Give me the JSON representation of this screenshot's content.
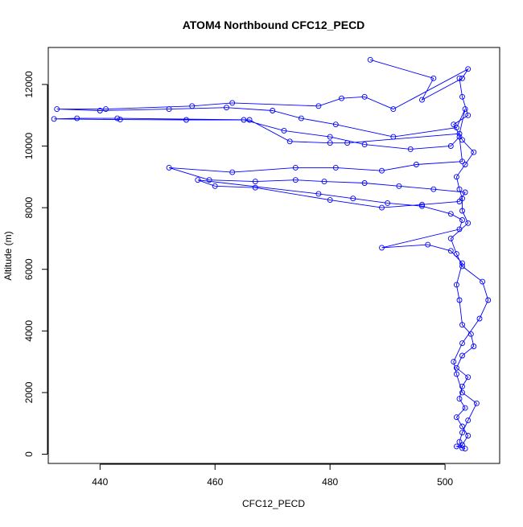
{
  "chart_data": {
    "type": "scatter",
    "title": "ATOM4 Northbound CFC12_PECD",
    "xlabel": "CFC12_PECD",
    "ylabel": "Altitude (m)",
    "xlim": [
      431,
      509.5
    ],
    "ylim": [
      -300,
      13200
    ],
    "xticks": [
      440,
      460,
      480,
      500
    ],
    "yticks": [
      0,
      2000,
      4000,
      6000,
      8000,
      10000,
      12000
    ],
    "xtick_labels": [
      "440",
      "460",
      "480",
      "500"
    ],
    "ytick_labels": [
      "0",
      "2000",
      "4000",
      "6000",
      "8000",
      "10000",
      "12000"
    ],
    "grid": false,
    "legend": "none",
    "colors": {
      "series": "#0000ff",
      "axes": "#000000",
      "background": "#ffffff"
    },
    "series": [
      {
        "marker": "open-circle",
        "connected": true,
        "x": [
          487.0,
          498.0,
          496.0,
          503.0,
          504.0,
          491.0,
          486.0,
          482.0,
          478.0,
          463.0,
          456.0,
          441.0,
          432.5,
          440.0,
          452.0,
          462.0,
          470.0,
          475.0,
          481.0,
          491.0,
          502.0,
          503.5,
          502.5,
          483.0,
          480.0,
          473.0,
          466.0,
          443.0,
          436.0,
          432.0,
          443.5,
          455.0,
          465.0,
          472.0,
          480.0,
          486.0,
          494.0,
          501.0,
          502.5,
          503.0,
          495.0,
          489.0,
          481.0,
          474.0,
          463.0,
          452.0,
          459.0,
          467.0,
          474.0,
          479.0,
          486.0,
          492.0,
          498.0,
          503.5,
          502.5,
          496.0,
          489.0,
          480.0,
          467.0,
          460.0,
          457.0,
          478.0,
          484.0,
          490.0,
          496.0,
          501.0,
          503.0,
          502.5,
          489.0,
          497.0,
          501.0,
          503.0,
          502.0,
          502.5,
          503.0,
          504.5,
          505.0,
          503.0,
          502.0,
          504.0,
          503.0,
          502.5,
          503.5,
          502.0,
          503.0,
          504.0,
          503.0,
          502.0,
          503.5,
          503.0,
          502.5,
          503.0,
          504.0,
          505.5,
          503.0,
          502.0,
          501.5,
          503.0,
          506.0,
          507.5,
          506.5,
          503.0,
          502.0,
          501.0,
          504.0,
          503.0,
          503.0,
          502.5,
          502.0,
          503.5,
          505.0,
          503.0,
          501.5,
          504.0,
          503.0,
          502.5
        ],
        "y": [
          12800,
          12200,
          11500,
          12200,
          12500,
          11200,
          11600,
          11550,
          11300,
          11400,
          11300,
          11200,
          11200,
          11150,
          11200,
          11250,
          11150,
          10900,
          10700,
          10300,
          10600,
          11200,
          10400,
          10100,
          10100,
          10150,
          10850,
          10900,
          10900,
          10880,
          10860,
          10850,
          10850,
          10500,
          10300,
          10050,
          9900,
          10000,
          10300,
          9500,
          9400,
          9200,
          9300,
          9300,
          9150,
          9300,
          8900,
          8850,
          8900,
          8850,
          8800,
          8700,
          8600,
          8500,
          8200,
          8100,
          8000,
          8250,
          8650,
          8700,
          8900,
          8450,
          8300,
          8150,
          8050,
          7800,
          7600,
          7300,
          6700,
          6800,
          6600,
          6200,
          5500,
          5000,
          4200,
          3900,
          3500,
          3200,
          2800,
          2500,
          2200,
          1800,
          1500,
          1200,
          900,
          600,
          300,
          250,
          180,
          200,
          400,
          700,
          1100,
          1650,
          2000,
          2600,
          3000,
          3600,
          4400,
          5000,
          5600,
          6100,
          6500,
          7000,
          7500,
          7900,
          8300,
          8600,
          9000,
          9400,
          9800,
          10200,
          10700,
          11000,
          11600,
          12200
        ]
      }
    ]
  }
}
